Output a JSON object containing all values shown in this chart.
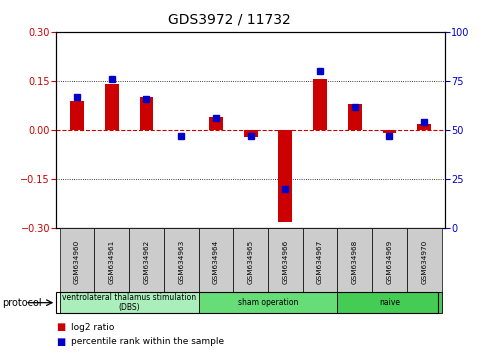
{
  "title": "GDS3972 / 11732",
  "samples": [
    "GSM634960",
    "GSM634961",
    "GSM634962",
    "GSM634963",
    "GSM634964",
    "GSM634965",
    "GSM634966",
    "GSM634967",
    "GSM634968",
    "GSM634969",
    "GSM634970"
  ],
  "log2_ratio": [
    0.09,
    0.14,
    0.1,
    0.0,
    0.04,
    -0.02,
    -0.28,
    0.155,
    0.08,
    -0.01,
    0.02
  ],
  "percentile_rank": [
    67,
    76,
    66,
    47,
    56,
    47,
    20,
    80,
    62,
    47,
    54
  ],
  "groups": [
    {
      "label": "ventrolateral thalamus stimulation\n(DBS)",
      "start": 0,
      "end": 3,
      "color": "#aaeebb"
    },
    {
      "label": "sham operation",
      "start": 4,
      "end": 7,
      "color": "#66dd77"
    },
    {
      "label": "naive",
      "start": 8,
      "end": 10,
      "color": "#44cc55"
    }
  ],
  "bar_color_red": "#cc0000",
  "bar_color_blue": "#0000cc",
  "ylim_left": [
    -0.3,
    0.3
  ],
  "ylim_right": [
    0,
    100
  ],
  "yticks_left": [
    -0.3,
    -0.15,
    0.0,
    0.15,
    0.3
  ],
  "yticks_right": [
    0,
    25,
    50,
    75,
    100
  ],
  "dotted_levels": [
    -0.15,
    0.15
  ],
  "title_fontsize": 10,
  "tick_fontsize": 7,
  "bar_width": 0.4
}
